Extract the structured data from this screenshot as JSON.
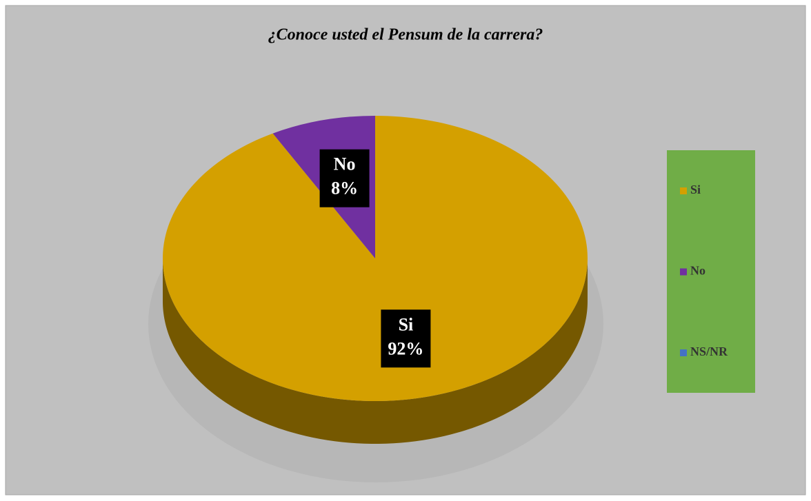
{
  "chart_data": {
    "type": "pie",
    "title": "¿Conoce usted el Pensum de la carrera?",
    "categories": [
      "Si",
      "No",
      "NS/NR"
    ],
    "values": [
      92,
      8,
      0
    ],
    "value_labels": [
      "92%",
      "8%",
      null
    ],
    "colors": [
      "#d4a000",
      "#7030a0",
      "#4472c4"
    ],
    "legend": "right"
  }
}
